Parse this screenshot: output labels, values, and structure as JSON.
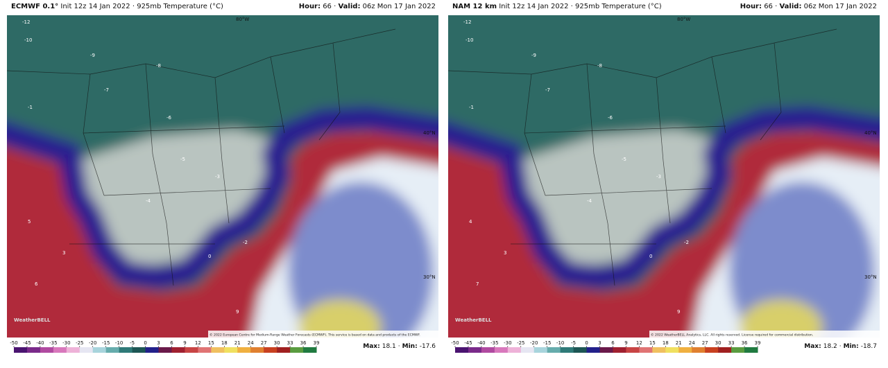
{
  "panels": [
    {
      "model": "ECMWF 0.1°",
      "init": "Init 12z 14 Jan 2022",
      "sep": "·",
      "field": "925mb Temperature (°C)",
      "hour_label": "Hour:",
      "hour": 66,
      "valid_label": "Valid:",
      "valid": "06z Mon 17 Jan 2022",
      "lon_label": "80°W",
      "lat_labels": [
        "40°N",
        "30°N"
      ],
      "credit": "© 2022 European Centre for Medium-Range Weather Forecasts (ECMWF). This service is based on data and products of the ECMWF.",
      "logo": "WeatherBELL",
      "stations": [
        -12,
        -10,
        -9,
        -8,
        -7,
        -6,
        -5,
        -4,
        -3,
        -2,
        0,
        3,
        5,
        6,
        9,
        -1
      ],
      "max_label": "Max:",
      "max": 18.1,
      "min_label": "Min:",
      "min": -17.6
    },
    {
      "model": "NAM 12 km",
      "init": "Init 12z 14 Jan 2022",
      "sep": "·",
      "field": "925mb Temperature (°C)",
      "hour_label": "Hour:",
      "hour": 66,
      "valid_label": "Valid:",
      "valid": "06z Mon 17 Jan 2022",
      "lon_label": "80°W",
      "lat_labels": [
        "40°N",
        "30°N"
      ],
      "credit": "© 2022 WeatherBELL Analytics, LLC. All rights reserved. License required for commercial distribution.",
      "logo": "WeatherBELL",
      "stations": [
        -12,
        -10,
        -9,
        -8,
        -7,
        -6,
        -5,
        -4,
        -3,
        -2,
        0,
        3,
        4,
        7,
        9,
        -1
      ],
      "max_label": "Max:",
      "max": 18.2,
      "min_label": "Min:",
      "min": -18.7
    }
  ],
  "colorbar": {
    "ticks": [
      -50,
      -45,
      -40,
      -35,
      -30,
      -25,
      -20,
      -15,
      -10,
      -5,
      0,
      3,
      6,
      9,
      12,
      15,
      18,
      21,
      24,
      27,
      30,
      33,
      36,
      39
    ],
    "colors": [
      "#4a1470",
      "#7a2a8a",
      "#b04aa0",
      "#d878bc",
      "#eeb2d8",
      "#e6e6f2",
      "#a8d4dc",
      "#66acac",
      "#2f7a78",
      "#1d5654",
      "#22208a",
      "#6a1a4a",
      "#a02030",
      "#c84444",
      "#e07474",
      "#f0c060",
      "#f0e060",
      "#f0b040",
      "#e08030",
      "#c84020",
      "#a02020",
      "#5a9c40",
      "#207a40"
    ]
  }
}
